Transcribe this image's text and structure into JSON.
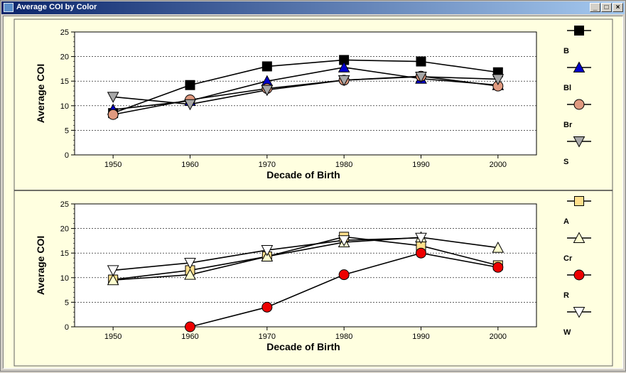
{
  "window": {
    "title": "Average COI by Color",
    "minimize_label": "_",
    "maximize_label": "□",
    "close_label": "×",
    "icon": "app-window-icon"
  },
  "colors": {
    "panel_bg": "#ffffe0",
    "plot_bg": "#ffffff"
  },
  "chart_data": [
    {
      "type": "line",
      "xlabel": "Decade of Birth",
      "ylabel": "Average COI",
      "x": [
        1950,
        1960,
        1970,
        1980,
        1990,
        2000
      ],
      "xticks": [
        "1950",
        "1960",
        "1970",
        "1980",
        "1990",
        "2000"
      ],
      "yticks": [
        "0",
        "5",
        "10",
        "15",
        "20",
        "25"
      ],
      "ylim": [
        0,
        25
      ],
      "grid": "horizontal-dashed",
      "legend_position": "right",
      "series": [
        {
          "name": "B",
          "marker": "square",
          "color": "#000000",
          "values": [
            8.5,
            14.2,
            18.0,
            19.3,
            19.0,
            16.8
          ]
        },
        {
          "name": "Bl",
          "marker": "triangle",
          "color": "#0000cc",
          "values": [
            9.2,
            11.0,
            15.0,
            17.8,
            15.5,
            14.2
          ]
        },
        {
          "name": "Br",
          "marker": "circle",
          "color": "#e09a80",
          "values": [
            8.2,
            11.2,
            13.5,
            15.2,
            16.0,
            14.0
          ]
        },
        {
          "name": "S",
          "marker": "triangle-down",
          "color": "#a8a8a8",
          "values": [
            11.8,
            10.3,
            13.2,
            15.2,
            15.9,
            15.4
          ]
        }
      ]
    },
    {
      "type": "line",
      "xlabel": "Decade of Birth",
      "ylabel": "Average COI",
      "x": [
        1950,
        1960,
        1970,
        1980,
        1990,
        2000
      ],
      "xticks": [
        "1950",
        "1960",
        "1970",
        "1980",
        "1990",
        "2000"
      ],
      "yticks": [
        "0",
        "5",
        "10",
        "15",
        "20",
        "25"
      ],
      "ylim": [
        0,
        25
      ],
      "grid": "horizontal-dashed",
      "legend_position": "right",
      "series": [
        {
          "name": "A",
          "marker": "square",
          "color": "#ffe08c",
          "values": [
            9.6,
            11.5,
            14.3,
            18.3,
            16.5,
            12.5
          ]
        },
        {
          "name": "Cr",
          "marker": "triangle",
          "color": "#ffffd0",
          "values": [
            9.5,
            10.6,
            14.3,
            17.2,
            18.2,
            16.1
          ]
        },
        {
          "name": "R",
          "marker": "circle",
          "color": "#ee0000",
          "values": [
            null,
            0.0,
            4.0,
            10.6,
            15.0,
            12.1
          ]
        },
        {
          "name": "W",
          "marker": "triangle-down",
          "color": "#ffffff",
          "values": [
            11.5,
            13.0,
            15.6,
            17.6,
            18.1,
            null
          ]
        }
      ]
    }
  ]
}
